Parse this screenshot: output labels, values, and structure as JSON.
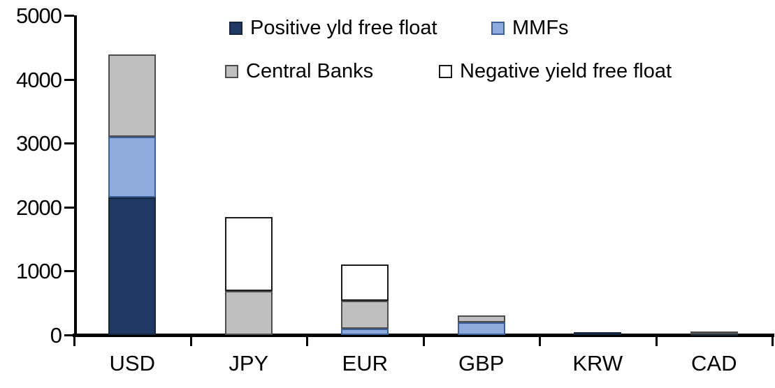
{
  "chart_data": {
    "type": "bar",
    "stacked": true,
    "title": "",
    "xlabel": "",
    "ylabel": "",
    "categories": [
      "USD",
      "JPY",
      "EUR",
      "GBP",
      "KRW",
      "CAD"
    ],
    "series": [
      {
        "name": "Positive yld free float",
        "color": "#1F3864",
        "border": "#16263F",
        "values": [
          2150,
          0,
          0,
          0,
          40,
          30
        ]
      },
      {
        "name": "MMFs",
        "color": "#8FAADC",
        "border": "#3C5E99",
        "values": [
          950,
          0,
          100,
          200,
          0,
          0
        ]
      },
      {
        "name": "Central Banks",
        "color": "#BFBFBF",
        "border": "#4D4D4D",
        "values": [
          1290,
          690,
          430,
          110,
          0,
          30
        ]
      },
      {
        "name": "Negative yield free float",
        "color": "#FFFFFF",
        "border": "#1A1A1A",
        "values": [
          0,
          1150,
          570,
          0,
          0,
          0
        ]
      }
    ],
    "totals": [
      4390,
      1840,
      1100,
      310,
      40,
      60
    ],
    "ylim": [
      0,
      5000
    ],
    "yticks": [
      "0",
      "1000",
      "2000",
      "3000",
      "4000",
      "5000"
    ],
    "grid": false,
    "legend_position": "top",
    "legend_order": [
      "Positive yld free float",
      "MMFs",
      "Central Banks",
      "Negative yield free float"
    ],
    "axis_color": "#000000",
    "background_color": "#FFFFFF"
  }
}
